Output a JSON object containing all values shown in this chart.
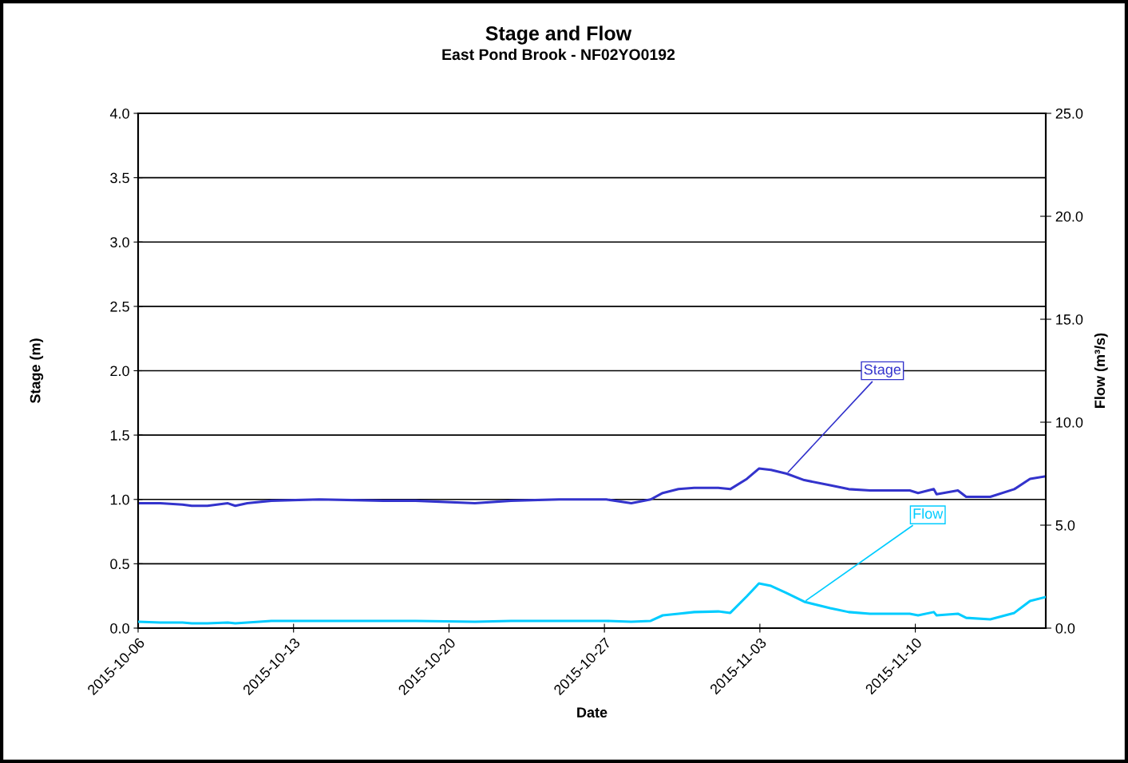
{
  "chart_data": {
    "type": "line",
    "title": "Stage and Flow",
    "subtitle": "East Pond Brook - NF02YO0192",
    "xlabel": "Date",
    "ylabel": "Stage (m)",
    "y2label": "Flow (m³/s)",
    "x": [
      "2015-10-06T00:00",
      "2015-10-07T00:00",
      "2015-10-08T00:00",
      "2015-10-08T10:00",
      "2015-10-09T03:00",
      "2015-10-10T01:00",
      "2015-10-10T09:00",
      "2015-10-10T22:00",
      "2015-10-12T00:00",
      "2015-10-14T04:00",
      "2015-10-17T01:00",
      "2015-10-18T12:00",
      "2015-10-21T04:00",
      "2015-10-22T19:00",
      "2015-10-24T23:00",
      "2015-10-27T02:00",
      "2015-10-28T05:00",
      "2015-10-29T02:00",
      "2015-10-29T15:00",
      "2015-10-30T08:00",
      "2015-10-31T01:00",
      "2015-11-01T03:00",
      "2015-11-01T16:00",
      "2015-11-02T10:00",
      "2015-11-02T23:00",
      "2015-11-03T12:00",
      "2015-11-04T05:00",
      "2015-11-05T00:00",
      "2015-11-06T04:00",
      "2015-11-07T00:00",
      "2015-11-07T23:00",
      "2015-11-09T18:00",
      "2015-11-10T03:00",
      "2015-11-10T20:00",
      "2015-11-10T23:00",
      "2015-11-11T22:00",
      "2015-11-12T07:00",
      "2015-11-13T09:00",
      "2015-11-14T11:00",
      "2015-11-15T04:00",
      "2015-11-15T21:00"
    ],
    "series": [
      {
        "name": "Stage",
        "color": "#3333cc",
        "values": [
          0.97,
          0.97,
          0.96,
          0.95,
          0.95,
          0.97,
          0.95,
          0.97,
          0.99,
          1.0,
          0.99,
          0.99,
          0.97,
          0.99,
          1.0,
          1.0,
          0.97,
          1.0,
          1.05,
          1.08,
          1.09,
          1.09,
          1.08,
          1.16,
          1.24,
          1.23,
          1.2,
          1.15,
          1.11,
          1.08,
          1.07,
          1.07,
          1.05,
          1.08,
          1.04,
          1.07,
          1.02,
          1.02,
          1.08,
          1.16,
          1.18
        ]
      },
      {
        "name": "Flow",
        "color": "#00ccff",
        "axis": "y2",
        "values": [
          0.31,
          0.27,
          0.27,
          0.23,
          0.23,
          0.27,
          0.23,
          0.27,
          0.35,
          0.35,
          0.35,
          0.35,
          0.31,
          0.35,
          0.35,
          0.35,
          0.31,
          0.35,
          0.62,
          0.7,
          0.78,
          0.81,
          0.74,
          1.55,
          2.17,
          2.05,
          1.7,
          1.28,
          0.97,
          0.78,
          0.7,
          0.7,
          0.62,
          0.78,
          0.62,
          0.7,
          0.5,
          0.43,
          0.74,
          1.32,
          1.51
        ]
      }
    ],
    "xlim": [
      "2015-10-06T00:00",
      "2015-11-15T21:00"
    ],
    "xticks": [
      {
        "value": "2015-10-06",
        "label": "2015-10-06"
      },
      {
        "value": "2015-10-13",
        "label": "2015-10-13"
      },
      {
        "value": "2015-10-20",
        "label": "2015-10-20"
      },
      {
        "value": "2015-10-27",
        "label": "2015-10-27"
      },
      {
        "value": "2015-11-03",
        "label": "2015-11-03"
      },
      {
        "value": "2015-11-10",
        "label": "2015-11-10"
      }
    ],
    "ylim": [
      0,
      4
    ],
    "yticks": [
      {
        "value": 0,
        "label": "0.0"
      },
      {
        "value": 0.5,
        "label": "0.5"
      },
      {
        "value": 1,
        "label": "1.0"
      },
      {
        "value": 1.5,
        "label": "1.5"
      },
      {
        "value": 2,
        "label": "2.0"
      },
      {
        "value": 2.5,
        "label": "2.5"
      },
      {
        "value": 3,
        "label": "3.0"
      },
      {
        "value": 3.5,
        "label": "3.5"
      },
      {
        "value": 4,
        "label": "4.0"
      }
    ],
    "y2lim": [
      0,
      25
    ],
    "y2ticks": [
      {
        "value": 0,
        "label": "0.0"
      },
      {
        "value": 5,
        "label": "5.0"
      },
      {
        "value": 10,
        "label": "10.0"
      },
      {
        "value": 15,
        "label": "15.0"
      },
      {
        "value": 20,
        "label": "20.0"
      },
      {
        "value": 25,
        "label": "25.0"
      }
    ],
    "grid": "y",
    "legend": false,
    "marker": "none",
    "line_style": "solid"
  }
}
